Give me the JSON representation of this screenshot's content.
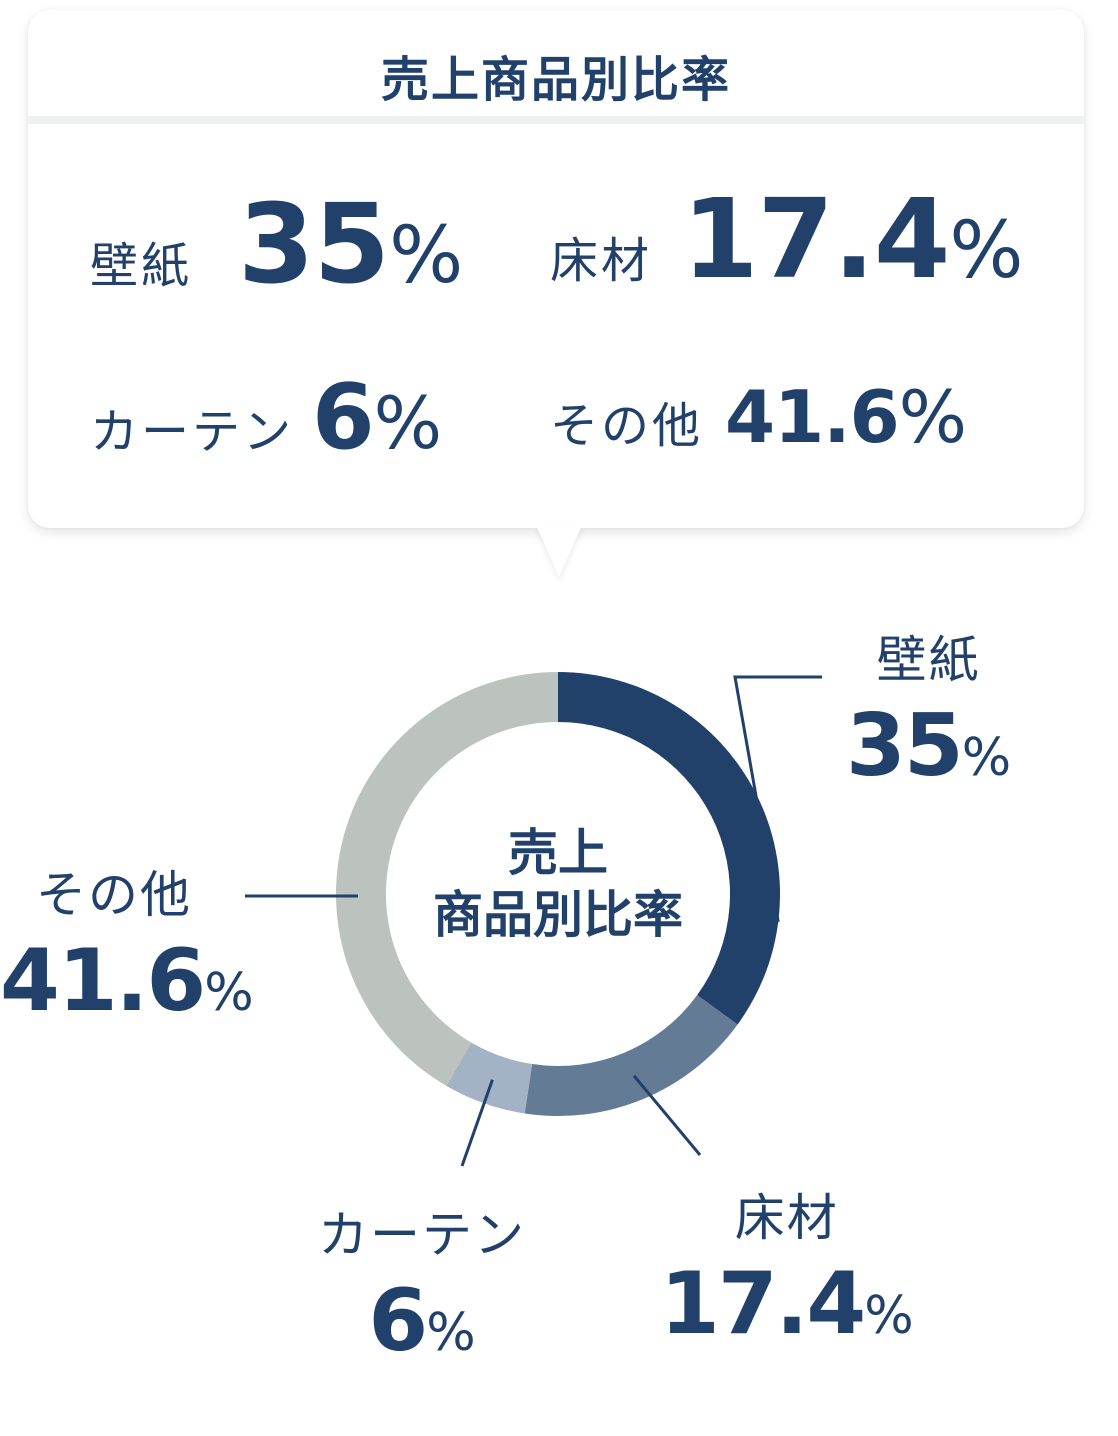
{
  "summary": {
    "title": "売上商品別比率",
    "items": [
      {
        "label": "壁紙",
        "value": "35",
        "unit": "%"
      },
      {
        "label": "床材",
        "value": "17.4",
        "unit": "%"
      },
      {
        "label": "カーテン",
        "value": "6",
        "unit": "%"
      },
      {
        "label": "その他",
        "value": "41.6",
        "unit": "%"
      }
    ]
  },
  "center": {
    "line1": "売上",
    "line2": "商品別比率"
  },
  "chart_data": {
    "type": "pie",
    "title": "売上商品別比率",
    "donut": true,
    "start_angle": "12 o'clock",
    "direction": "clockwise",
    "categories": [
      "壁紙",
      "床材",
      "カーテン",
      "その他"
    ],
    "values": [
      35,
      17.4,
      6,
      41.6
    ],
    "unit": "%",
    "colors": [
      "#21416a",
      "#647b96",
      "#a3b2c4",
      "#bcc3bf"
    ]
  }
}
